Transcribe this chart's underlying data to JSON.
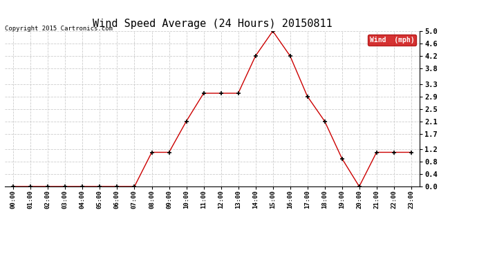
{
  "title": "Wind Speed Average (24 Hours) 20150811",
  "copyright": "Copyright 2015 Cartronics.com",
  "legend_label": "Wind  (mph)",
  "hours": [
    "00:00",
    "01:00",
    "02:00",
    "03:00",
    "04:00",
    "05:00",
    "06:00",
    "07:00",
    "08:00",
    "09:00",
    "10:00",
    "11:00",
    "12:00",
    "13:00",
    "14:00",
    "15:00",
    "16:00",
    "17:00",
    "18:00",
    "19:00",
    "20:00",
    "21:00",
    "22:00",
    "23:00"
  ],
  "values": [
    0.0,
    0.0,
    0.0,
    0.0,
    0.0,
    0.0,
    0.0,
    0.0,
    1.1,
    1.1,
    2.1,
    3.0,
    3.0,
    3.0,
    4.2,
    5.0,
    4.2,
    2.9,
    2.1,
    0.9,
    0.0,
    1.1,
    1.1,
    1.1
  ],
  "line_color": "#cc0000",
  "marker_color": "#000000",
  "background_color": "#ffffff",
  "grid_color": "#cccccc",
  "ylim": [
    0.0,
    5.0
  ],
  "yticks": [
    0.0,
    0.4,
    0.8,
    1.2,
    1.7,
    2.1,
    2.5,
    2.9,
    3.3,
    3.8,
    4.2,
    4.6,
    5.0
  ],
  "title_fontsize": 11,
  "legend_bg": "#cc0000",
  "legend_text_color": "#ffffff"
}
